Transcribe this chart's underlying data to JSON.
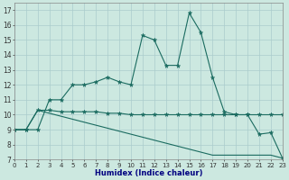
{
  "xlabel": "Humidex (Indice chaleur)",
  "bg_color": "#cce8e0",
  "grid_color": "#aacccc",
  "line_color": "#1a6b60",
  "xlim": [
    0,
    23
  ],
  "ylim": [
    7,
    17.5
  ],
  "xticks": [
    0,
    1,
    2,
    3,
    4,
    5,
    6,
    7,
    8,
    9,
    10,
    11,
    12,
    13,
    14,
    15,
    16,
    17,
    18,
    19,
    20,
    21,
    22,
    23
  ],
  "yticks": [
    7,
    8,
    9,
    10,
    11,
    12,
    13,
    14,
    15,
    16,
    17
  ],
  "line1_x": [
    0,
    1,
    2,
    3,
    4,
    5,
    6,
    7,
    8,
    9,
    10,
    11,
    12,
    13,
    14,
    15,
    16,
    17,
    18,
    19,
    20,
    21,
    22,
    23
  ],
  "line1_y": [
    9.0,
    9.0,
    9.0,
    11.0,
    11.0,
    12.0,
    12.0,
    12.2,
    12.5,
    12.2,
    12.0,
    15.3,
    15.0,
    13.3,
    13.3,
    16.8,
    15.5,
    12.5,
    10.2,
    10.0,
    10.0,
    8.7,
    8.8,
    7.1
  ],
  "line2_x": [
    0,
    1,
    2,
    3,
    4,
    5,
    6,
    7,
    8,
    9,
    10,
    11,
    12,
    13,
    14,
    15,
    16,
    17,
    18,
    19,
    20,
    21,
    22,
    23
  ],
  "line2_y": [
    9.0,
    9.0,
    10.3,
    10.3,
    10.2,
    10.2,
    10.2,
    10.2,
    10.1,
    10.1,
    10.0,
    10.0,
    10.0,
    10.0,
    10.0,
    10.0,
    10.0,
    10.0,
    10.0,
    10.0,
    10.0,
    10.0,
    10.0,
    10.0
  ],
  "line3_x": [
    0,
    1,
    2,
    3,
    4,
    5,
    6,
    7,
    8,
    9,
    10,
    11,
    12,
    13,
    14,
    15,
    16,
    17,
    18,
    19,
    20,
    21,
    22,
    23
  ],
  "line3_y": [
    9.0,
    9.0,
    10.3,
    10.1,
    9.9,
    9.7,
    9.5,
    9.3,
    9.1,
    8.9,
    8.7,
    8.5,
    8.3,
    8.1,
    7.9,
    7.7,
    7.5,
    7.3,
    7.3,
    7.3,
    7.3,
    7.3,
    7.3,
    7.1
  ],
  "xlabel_color": "#000080",
  "tick_fontsize": 5,
  "xlabel_fontsize": 6
}
